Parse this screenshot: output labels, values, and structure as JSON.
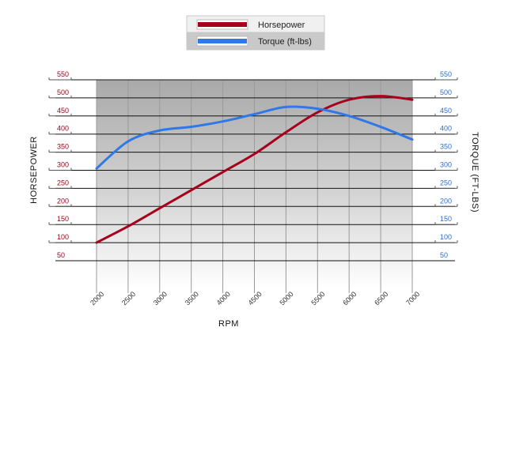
{
  "chart_data": {
    "type": "line",
    "x": [
      2000,
      2500,
      3000,
      3500,
      4000,
      4500,
      5000,
      5500,
      6000,
      6500,
      7000
    ],
    "x_tick_labels": [
      "2000",
      "2500",
      "3000",
      "3500",
      "4000",
      "4500",
      "5000",
      "5500",
      "6000",
      "6500",
      "7000"
    ],
    "xlabel": "RPM",
    "ylabel_left": "HORSEPOWER",
    "ylabel_right": "TORQUE (FT-LBS)",
    "y_ticks_left": [
      50,
      100,
      150,
      200,
      250,
      300,
      350,
      400,
      450,
      500,
      550
    ],
    "y_ticks_right": [
      50,
      100,
      150,
      200,
      250,
      300,
      350,
      400,
      450,
      500,
      550
    ],
    "ylim": [
      50,
      550
    ],
    "grid": true,
    "legend_position": "top-center",
    "series": [
      {
        "name": "Horsepower",
        "color": "#a8001c",
        "values": [
          100,
          145,
          195,
          245,
          295,
          345,
          405,
          460,
          495,
          505,
          495
        ]
      },
      {
        "name": "Torque (ft-lbs)",
        "color": "#2f78e8",
        "values": [
          305,
          380,
          410,
          420,
          435,
          455,
          475,
          470,
          450,
          420,
          385
        ]
      }
    ]
  }
}
